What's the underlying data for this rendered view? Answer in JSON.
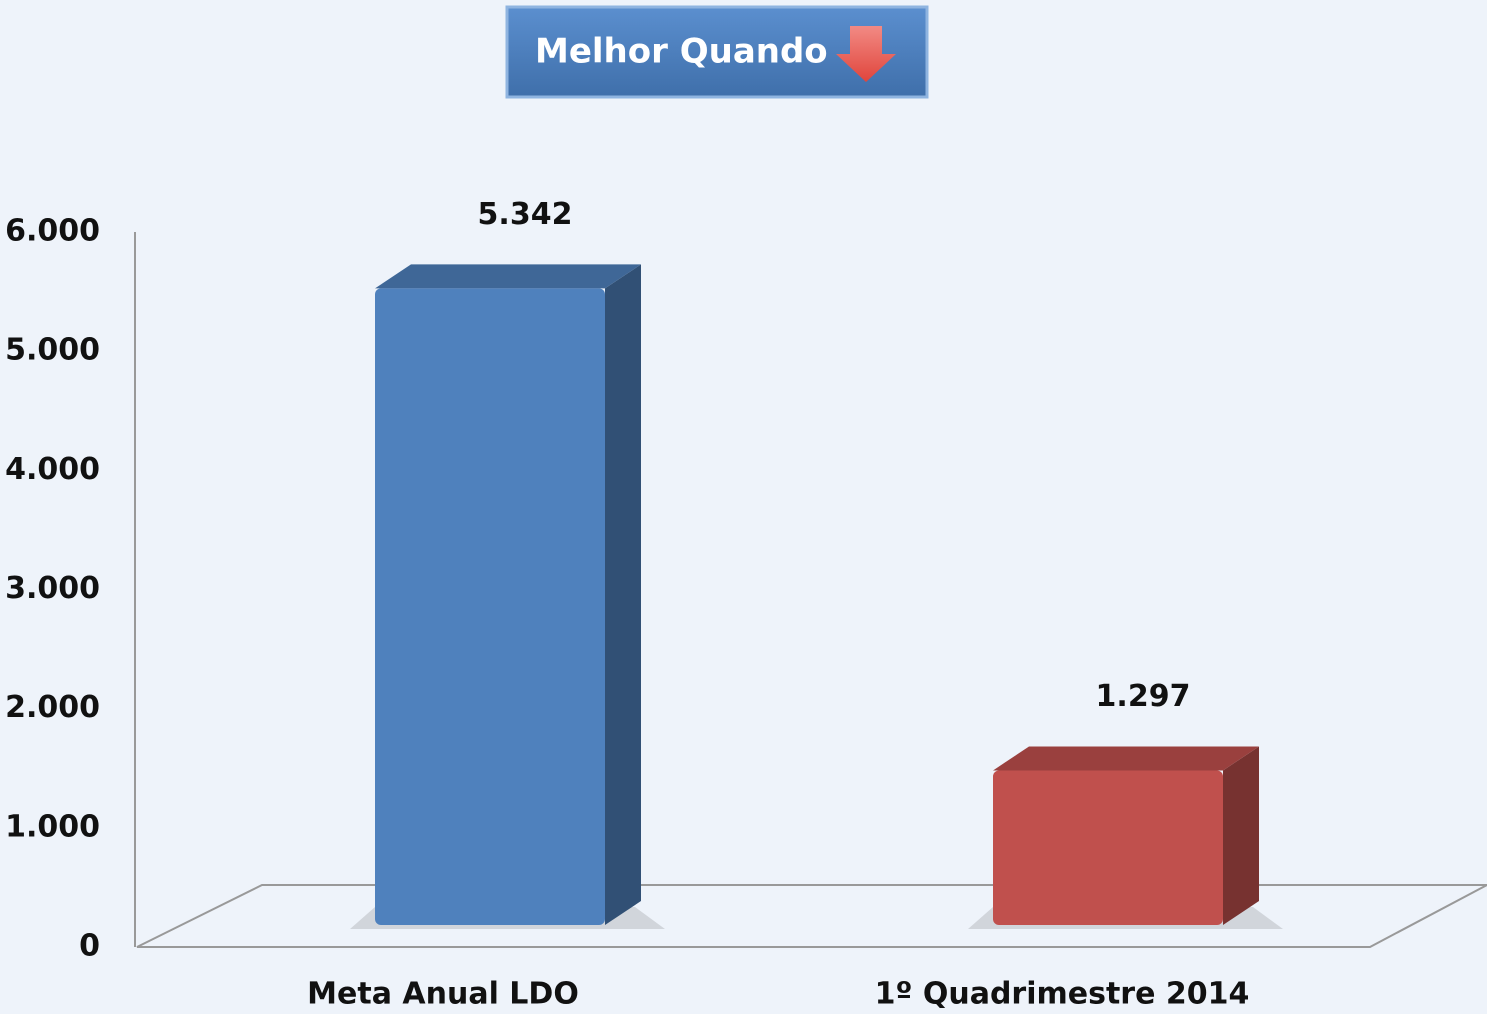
{
  "chart_data": {
    "type": "bar",
    "title": "Melhor Quando",
    "categories": [
      "Meta Anual LDO",
      "1º Quadrimestre 2014"
    ],
    "values": [
      5342,
      1297
    ],
    "value_labels": [
      "5.342",
      "1.297"
    ],
    "colors": [
      "#4f81bd",
      "#c0504d"
    ],
    "ylim": [
      0,
      6000
    ],
    "yticks": [
      0,
      {
        "value": 1000,
        "label": "1.000"
      },
      {
        "value": 2000,
        "label": "2.000"
      },
      {
        "value": 3000,
        "label": "3.000"
      },
      {
        "value": 4000,
        "label": "4.000"
      },
      {
        "value": 5000,
        "label": "5.000"
      },
      {
        "value": 6000,
        "label": "6.000"
      }
    ],
    "grid": false
  }
}
